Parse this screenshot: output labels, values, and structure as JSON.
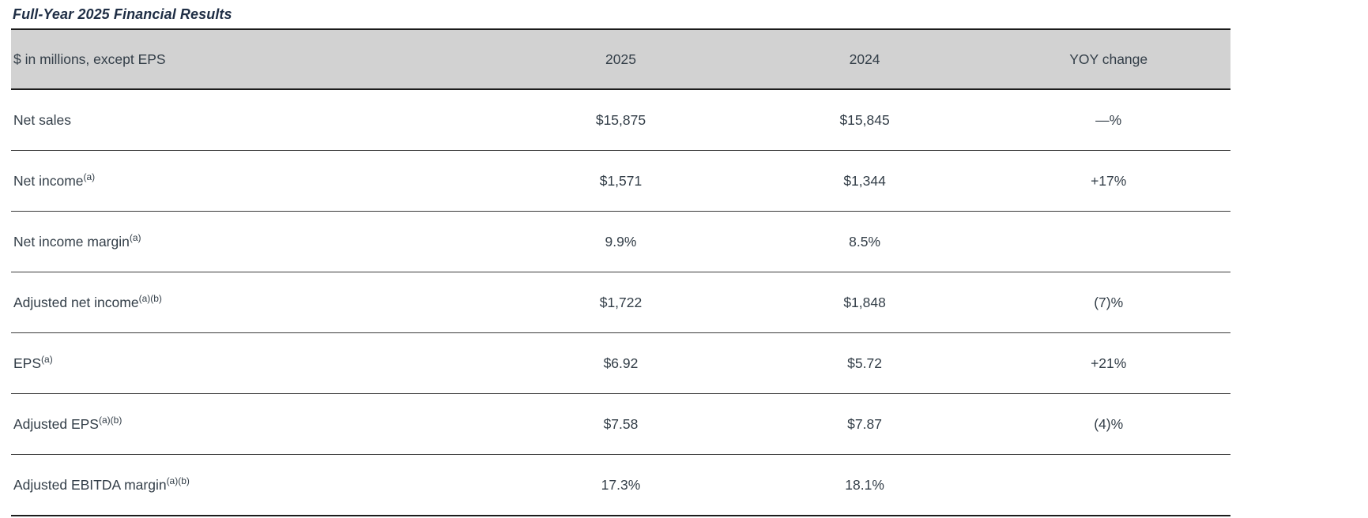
{
  "page": {
    "title": "Full-Year 2025 Financial Results"
  },
  "table": {
    "columns": {
      "metric": "$ in millions, except EPS",
      "col2025": "2025",
      "col2024": "2024",
      "yoy": "YOY change"
    },
    "rows": [
      {
        "label": "Net sales",
        "superscript": "",
        "v2025": "$15,875",
        "v2024": "$15,845",
        "yoy": "—%"
      },
      {
        "label": "Net income",
        "superscript": "(a)",
        "v2025": "$1,571",
        "v2024": "$1,344",
        "yoy": "+17%"
      },
      {
        "label": "Net income margin",
        "superscript": "(a)",
        "v2025": "9.9%",
        "v2024": "8.5%",
        "yoy": ""
      },
      {
        "label": "Adjusted net income",
        "superscript": "(a)(b)",
        "v2025": "$1,722",
        "v2024": "$1,848",
        "yoy": "(7)%"
      },
      {
        "label": "EPS",
        "superscript": "(a)",
        "v2025": "$6.92",
        "v2024": "$5.72",
        "yoy": "+21%"
      },
      {
        "label": "Adjusted EPS",
        "superscript": "(a)(b)",
        "v2025": "$7.58",
        "v2024": "$7.87",
        "yoy": "(4)%"
      },
      {
        "label": "Adjusted EBITDA margin",
        "superscript": "(a)(b)",
        "v2025": "17.3%",
        "v2024": "18.1%",
        "yoy": ""
      }
    ]
  },
  "colors": {
    "title": "#1f2e45",
    "text": "#333e48",
    "header_bg": "#d2d2d2",
    "border_thick": "#1c1c1c",
    "border_thin": "#3a3a3a"
  }
}
